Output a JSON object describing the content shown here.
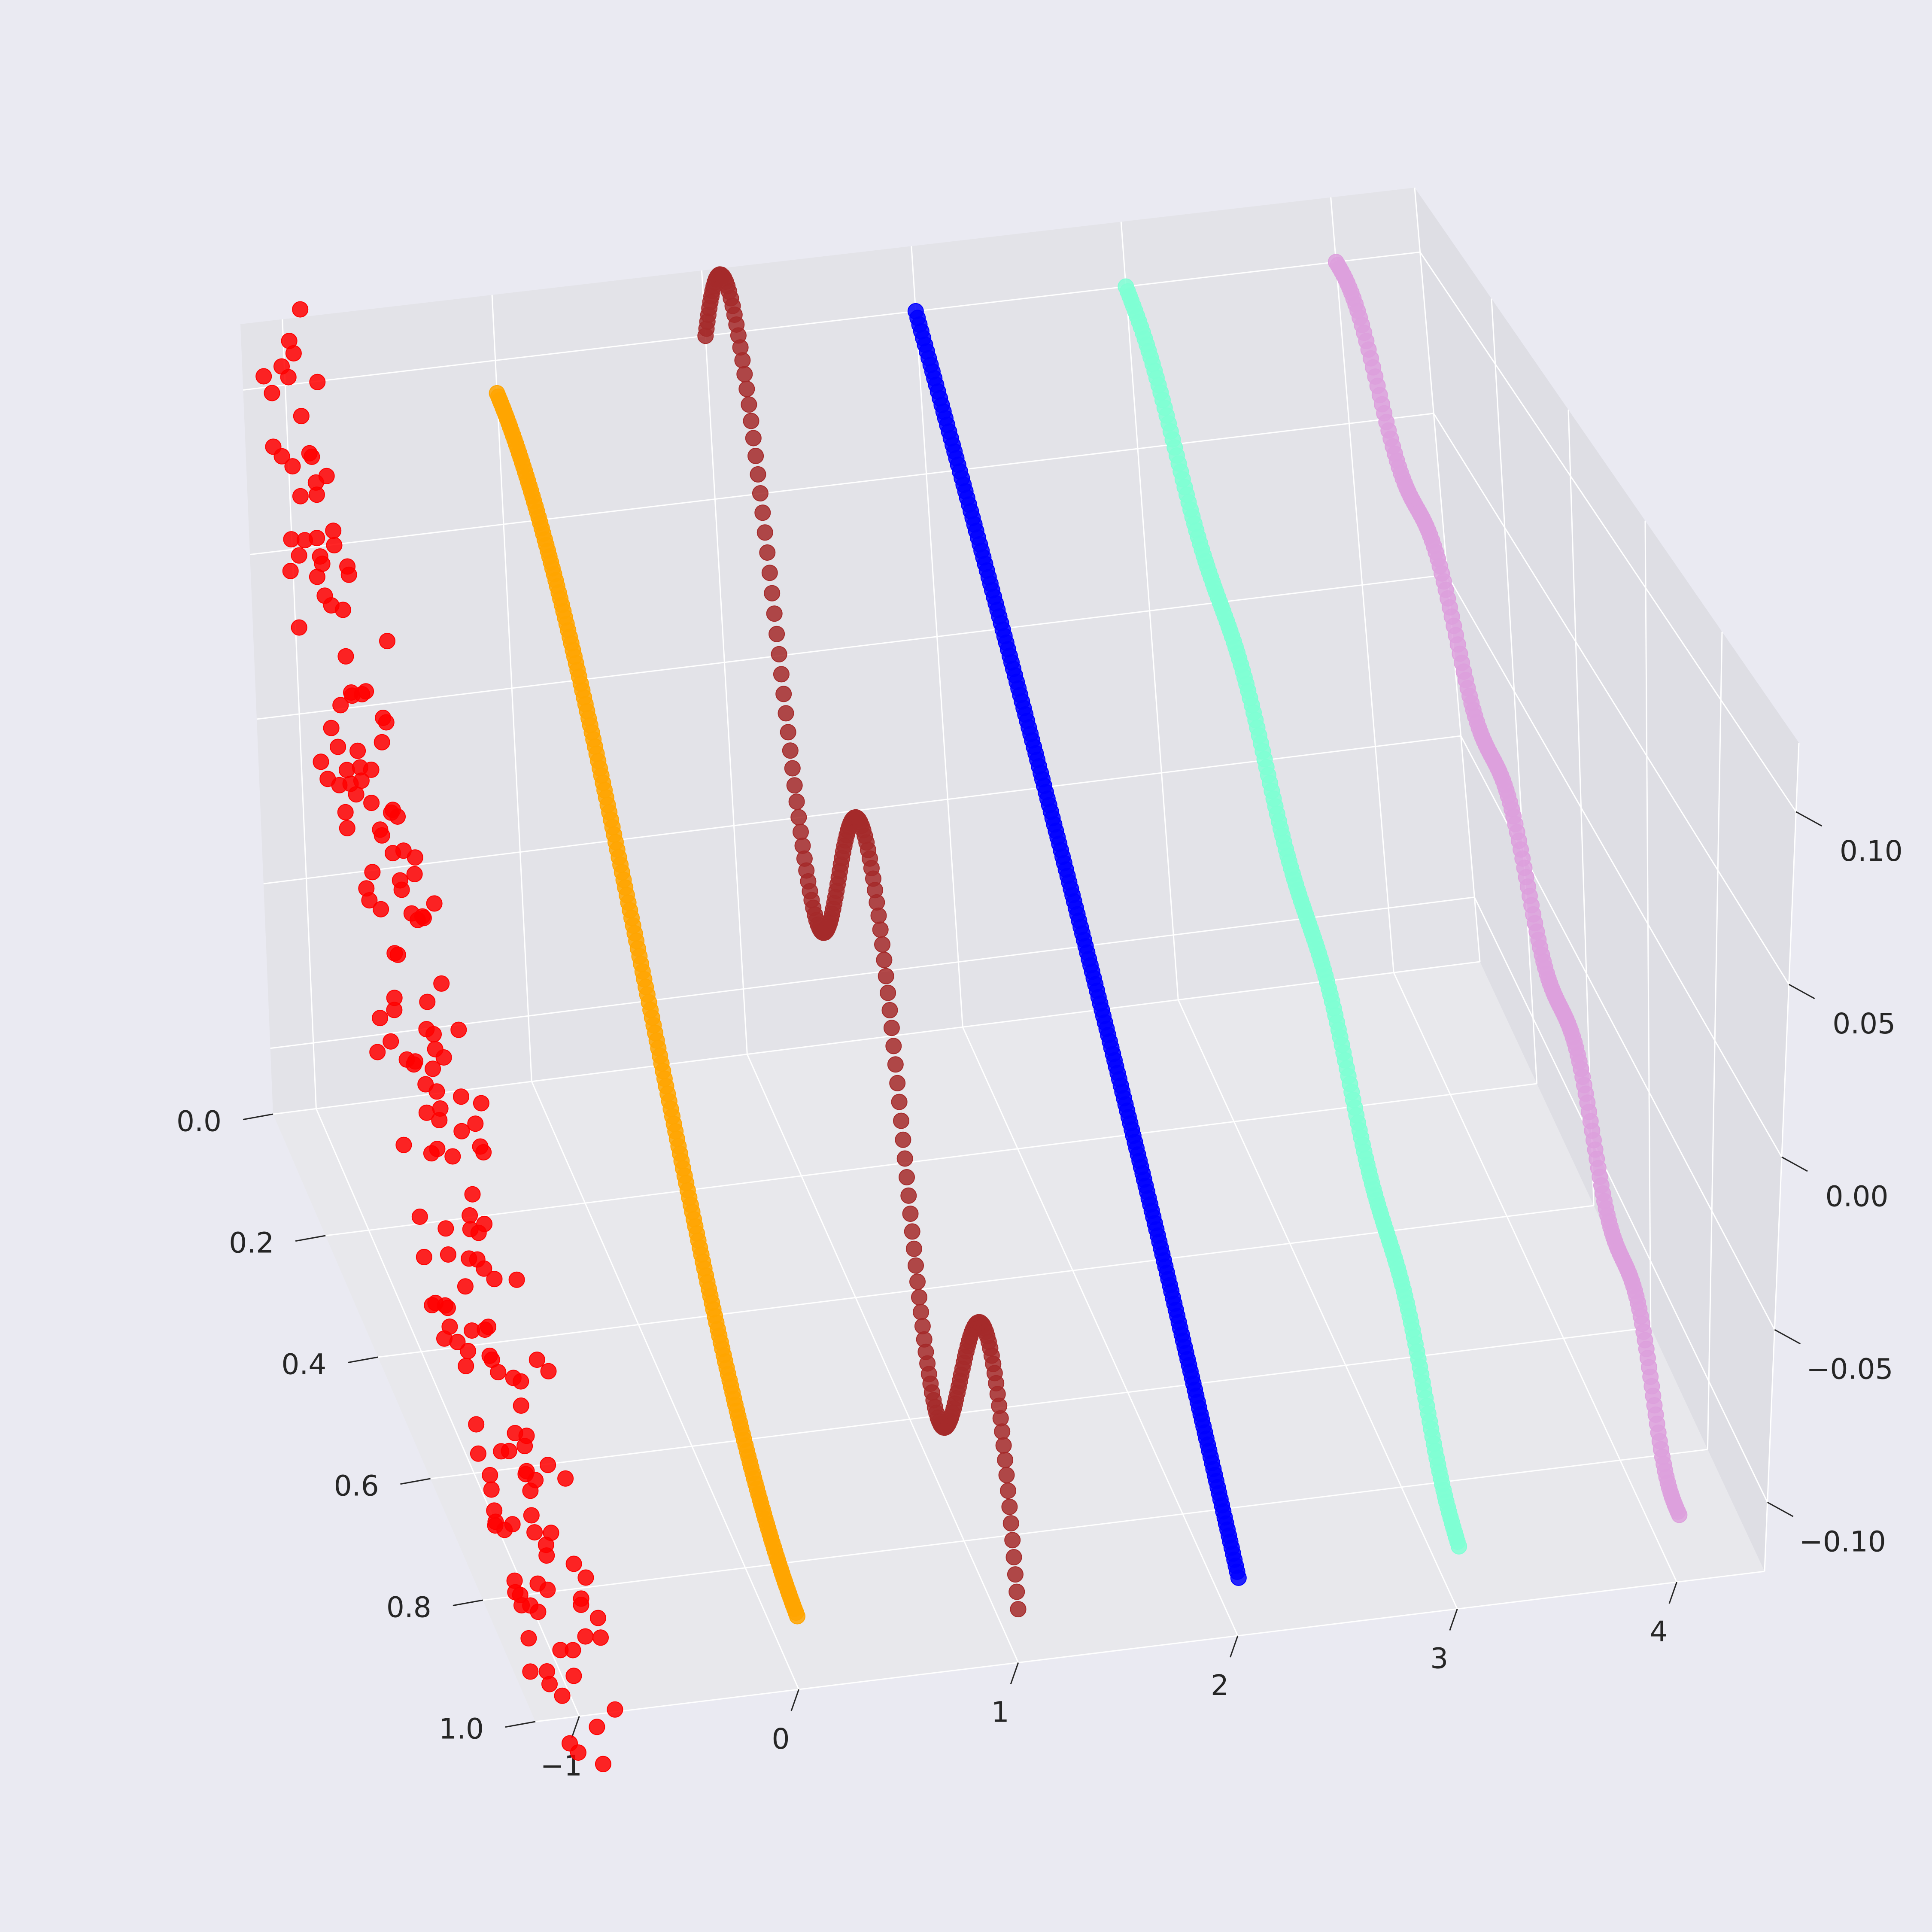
{
  "chart_data": {
    "type": "scatter",
    "projection": "3d",
    "grid": true,
    "legend": "none",
    "background_color": "#eaeaf2",
    "pane_color": "#e6e6ea",
    "grid_color": "#ffffff",
    "x_axis": {
      "ticks": [
        0.0,
        0.2,
        0.4,
        0.6,
        0.8,
        1.0
      ],
      "tick_labels": [
        "0.0",
        "0.2",
        "0.4",
        "0.6",
        "0.8",
        "1.0"
      ],
      "range": [
        0.0,
        1.0
      ]
    },
    "y_axis": {
      "ticks": [
        -1,
        0,
        1,
        2,
        3,
        4
      ],
      "tick_labels": [
        "−1",
        "0",
        "1",
        "2",
        "3",
        "4"
      ],
      "range": [
        -1.2,
        4.4
      ]
    },
    "z_axis": {
      "ticks": [
        -0.1,
        -0.05,
        0.0,
        0.05,
        0.1
      ],
      "tick_labels": [
        "−0.10",
        "−0.05",
        "0.00",
        "0.05",
        "0.10"
      ],
      "range": [
        -0.12,
        0.12
      ]
    },
    "series": [
      {
        "color": "#ff0000",
        "pattern": "noisy",
        "y": -1.0,
        "points": 200,
        "x_range": [
          0.0,
          1.0
        ],
        "z_start": 0.1,
        "z_end": -0.12,
        "wave_amp": 0.0,
        "noise_amp": 0.03
      },
      {
        "color": "#ffa500",
        "pattern": "smooth",
        "y": 0.0,
        "points": 200,
        "x_range": [
          0.0,
          1.0
        ],
        "z_start": 0.1,
        "z_end": -0.1,
        "wave_amp": 0.0,
        "noise_amp": 0.0
      },
      {
        "color": "#a52a2a",
        "pattern": "oscillating",
        "y": 1.0,
        "points": 200,
        "x_range": [
          0.0,
          1.0
        ],
        "z_start": 0.1,
        "z_end": -0.1,
        "wave_amp": 0.055,
        "wave_cycles": 2.5,
        "noise_amp": 0.0
      },
      {
        "color": "#0000ff",
        "pattern": "linear",
        "y": 2.0,
        "points": 200,
        "x_range": [
          0.0,
          1.0
        ],
        "z_start": 0.1,
        "z_end": -0.1,
        "wave_amp": 0.0,
        "noise_amp": 0.0
      },
      {
        "color": "#7fffd4",
        "pattern": "slight-wave",
        "y": 3.0,
        "points": 200,
        "x_range": [
          0.0,
          1.0
        ],
        "z_start": 0.1,
        "z_end": -0.1,
        "wave_amp": 0.004,
        "wave_cycles": 4,
        "noise_amp": 0.0
      },
      {
        "color": "#dda0dd",
        "pattern": "stepped",
        "y": 4.0,
        "points": 200,
        "x_range": [
          0.0,
          1.0
        ],
        "z_start": 0.1,
        "z_end": -0.1,
        "wave_amp": 0.006,
        "wave_cycles": 5,
        "noise_amp": 0.0
      }
    ]
  }
}
